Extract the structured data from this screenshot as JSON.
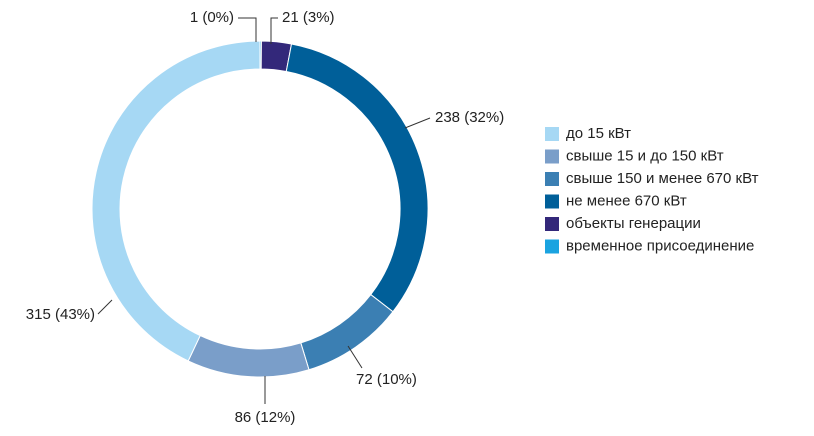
{
  "chart_data": {
    "type": "donut",
    "categories": [
      "до 15 кВт",
      "свыше 15 и до 150 кВт",
      "свыше 150 и менее 670 кВт",
      "не менее 670 кВт",
      "объекты генерации",
      "временное присоединение"
    ],
    "values": [
      315,
      86,
      72,
      238,
      21,
      1
    ],
    "value_labels": [
      "315 (43%)",
      "86 (12%)",
      "72 (10%)",
      "238 (32%)",
      "21 (3%)",
      "1 (0%)"
    ],
    "colors": [
      "#a6d8f4",
      "#7a9ec9",
      "#3b7fb3",
      "#005f99",
      "#33287a",
      "#1aa3e0"
    ],
    "legend": "right"
  }
}
